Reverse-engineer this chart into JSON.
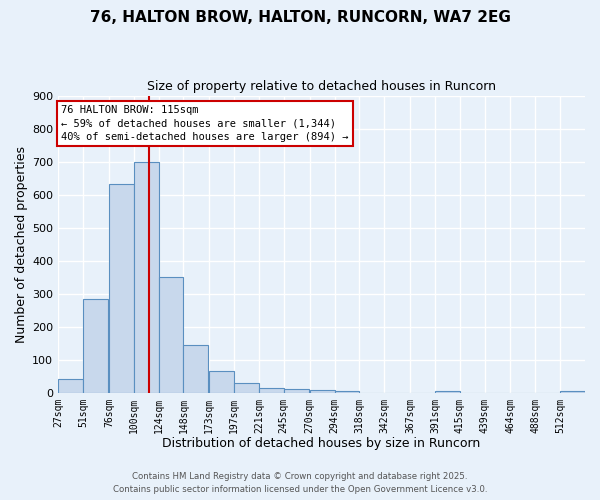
{
  "title": "76, HALTON BROW, HALTON, RUNCORN, WA7 2EG",
  "subtitle": "Size of property relative to detached houses in Runcorn",
  "xlabel": "Distribution of detached houses by size in Runcorn",
  "ylabel": "Number of detached properties",
  "bar_color": "#c8d8ec",
  "bar_edge_color": "#5a8fc0",
  "background_color": "#e8f1fa",
  "grid_color": "#ffffff",
  "vline_x": 115,
  "vline_color": "#cc0000",
  "categories": [
    "27sqm",
    "51sqm",
    "76sqm",
    "100sqm",
    "124sqm",
    "148sqm",
    "173sqm",
    "197sqm",
    "221sqm",
    "245sqm",
    "270sqm",
    "294sqm",
    "318sqm",
    "342sqm",
    "367sqm",
    "391sqm",
    "415sqm",
    "439sqm",
    "464sqm",
    "488sqm",
    "512sqm"
  ],
  "bin_edges": [
    27,
    51,
    76,
    100,
    124,
    148,
    173,
    197,
    221,
    245,
    270,
    294,
    318,
    342,
    367,
    391,
    415,
    439,
    464,
    488,
    512
  ],
  "bin_width": 24,
  "values": [
    42,
    284,
    632,
    700,
    350,
    145,
    65,
    30,
    13,
    10,
    7,
    5,
    0,
    0,
    0,
    4,
    0,
    0,
    0,
    0,
    4
  ],
  "ylim": [
    0,
    900
  ],
  "yticks": [
    0,
    100,
    200,
    300,
    400,
    500,
    600,
    700,
    800,
    900
  ],
  "annotation_title": "76 HALTON BROW: 115sqm",
  "annotation_line1": "← 59% of detached houses are smaller (1,344)",
  "annotation_line2": "40% of semi-detached houses are larger (894) →",
  "annotation_box_color": "#ffffff",
  "annotation_box_edge": "#cc0000",
  "footer1": "Contains HM Land Registry data © Crown copyright and database right 2025.",
  "footer2": "Contains public sector information licensed under the Open Government Licence v3.0."
}
